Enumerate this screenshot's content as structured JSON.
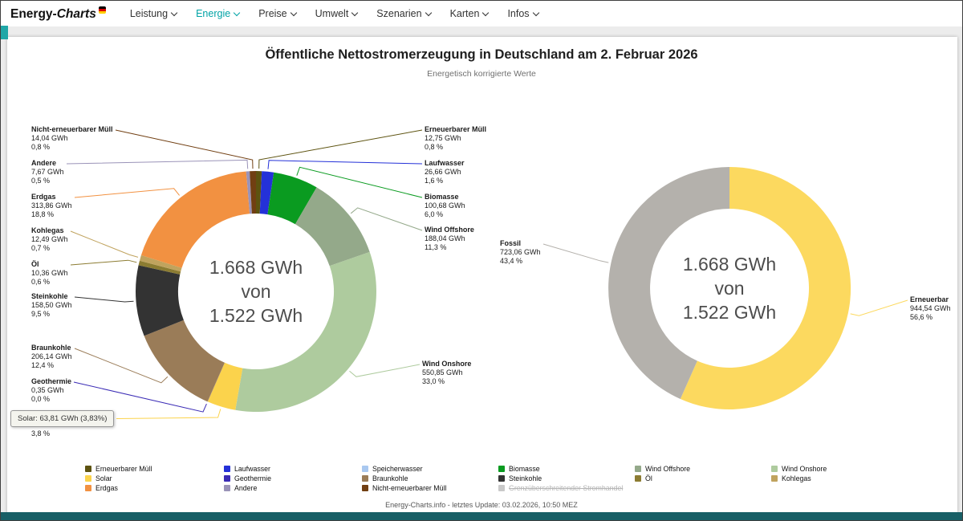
{
  "nav": {
    "logo_bold": "Energy-",
    "logo_italic": "Charts",
    "items": [
      {
        "label": "Leistung"
      },
      {
        "label": "Energie"
      },
      {
        "label": "Preise"
      },
      {
        "label": "Umwelt"
      },
      {
        "label": "Szenarien"
      },
      {
        "label": "Karten"
      },
      {
        "label": "Infos"
      }
    ]
  },
  "header": {
    "title": "Öffentliche Nettostromerzeugung in Deutschland am 2. Februar 2026",
    "subtitle": "Energetisch korrigierte Werte"
  },
  "chart_data": [
    {
      "type": "pie",
      "subtype": "donut",
      "unit": "GWh",
      "legend_position": "bottom",
      "center_text": [
        "1.668 GWh",
        "von",
        "1.522 GWh"
      ],
      "series": [
        {
          "name": "Erneuerbarer Müll",
          "gwh": 12.75,
          "value": "12,75 GWh",
          "pct": "0,8 %",
          "color": "#5d5310"
        },
        {
          "name": "Laufwasser",
          "gwh": 26.66,
          "value": "26,66 GWh",
          "pct": "1,6 %",
          "color": "#2431d8"
        },
        {
          "name": "Biomasse",
          "gwh": 100.68,
          "value": "100,68 GWh",
          "pct": "6,0 %",
          "color": "#0a9b20"
        },
        {
          "name": "Wind Offshore",
          "gwh": 188.04,
          "value": "188,04 GWh",
          "pct": "11,3 %",
          "color": "#94a98a"
        },
        {
          "name": "Wind Onshore",
          "gwh": 550.85,
          "value": "550,85 GWh",
          "pct": "33,0 %",
          "color": "#aecb9e"
        },
        {
          "name": "Solar",
          "gwh": 63.81,
          "value": "63,81 GWh",
          "pct": "3,8 %",
          "color": "#fbd34c"
        },
        {
          "name": "Geothermie",
          "gwh": 0.35,
          "value": "0,35 GWh",
          "pct": "0,0 %",
          "color": "#3a2bb5"
        },
        {
          "name": "Braunkohle",
          "gwh": 206.14,
          "value": "206,14 GWh",
          "pct": "12,4 %",
          "color": "#9a7c58"
        },
        {
          "name": "Steinkohle",
          "gwh": 158.5,
          "value": "158,50 GWh",
          "pct": "9,5 %",
          "color": "#333333"
        },
        {
          "name": "Öl",
          "gwh": 10.36,
          "value": "10,36 GWh",
          "pct": "0,6 %",
          "color": "#8c7c32"
        },
        {
          "name": "Kohlegas",
          "gwh": 12.49,
          "value": "12,49 GWh",
          "pct": "0,7 %",
          "color": "#c0a35e"
        },
        {
          "name": "Erdgas",
          "gwh": 313.86,
          "value": "313,86 GWh",
          "pct": "18,8 %",
          "color": "#f29141"
        },
        {
          "name": "Andere",
          "gwh": 7.67,
          "value": "7,67 GWh",
          "pct": "0,5 %",
          "color": "#9a93b8"
        },
        {
          "name": "Nicht-erneuerbarer Müll",
          "gwh": 14.04,
          "value": "14,04 GWh",
          "pct": "0,8 %",
          "color": "#713f12"
        }
      ]
    },
    {
      "type": "pie",
      "subtype": "donut",
      "unit": "GWh",
      "legend_position": "bottom",
      "center_text": [
        "1.668 GWh",
        "von",
        "1.522 GWh"
      ],
      "series": [
        {
          "name": "Erneuerbar",
          "gwh": 944.54,
          "value": "944,54 GWh",
          "pct": "56,6 %",
          "color": "#fcd95f"
        },
        {
          "name": "Fossil",
          "gwh": 723.06,
          "value": "723,06 GWh",
          "pct": "43,4 %",
          "color": "#b4b1ac"
        }
      ]
    }
  ],
  "tooltip": {
    "text": "Solar: 63,81 GWh (3,83%)"
  },
  "legend": {
    "columns": [
      [
        {
          "label": "Erneuerbarer Müll",
          "color": "#5d5310"
        },
        {
          "label": "Solar",
          "color": "#fbd34c"
        },
        {
          "label": "Erdgas",
          "color": "#f29141"
        }
      ],
      [
        {
          "label": "Laufwasser",
          "color": "#2431d8"
        },
        {
          "label": "Geothermie",
          "color": "#3a2bb5"
        },
        {
          "label": "Andere",
          "color": "#9a93b8"
        }
      ],
      [
        {
          "label": "Speicherwasser",
          "color": "#a9c8f0"
        },
        {
          "label": "Braunkohle",
          "color": "#9a7c58"
        },
        {
          "label": "Nicht-erneuerbarer Müll",
          "color": "#713f12"
        }
      ],
      [
        {
          "label": "Biomasse",
          "color": "#0a9b20"
        },
        {
          "label": "Steinkohle",
          "color": "#333333"
        },
        {
          "label": "Grenzüberschreitender Stromhandel",
          "color": "#c9c9c9",
          "disabled": true
        }
      ],
      [
        {
          "label": "Wind Offshore",
          "color": "#94a98a"
        },
        {
          "label": "Öl",
          "color": "#8c7c32"
        }
      ],
      [
        {
          "label": "Wind Onshore",
          "color": "#aecb9e"
        },
        {
          "label": "Kohlegas",
          "color": "#c0a35e"
        }
      ]
    ]
  },
  "footer": {
    "text": "Energy-Charts.info - letztes Update: 03.02.2026, 10:50 MEZ"
  },
  "colors": {
    "accent_teal": "#1fa7a7",
    "bottom_bar": "#185f66"
  }
}
